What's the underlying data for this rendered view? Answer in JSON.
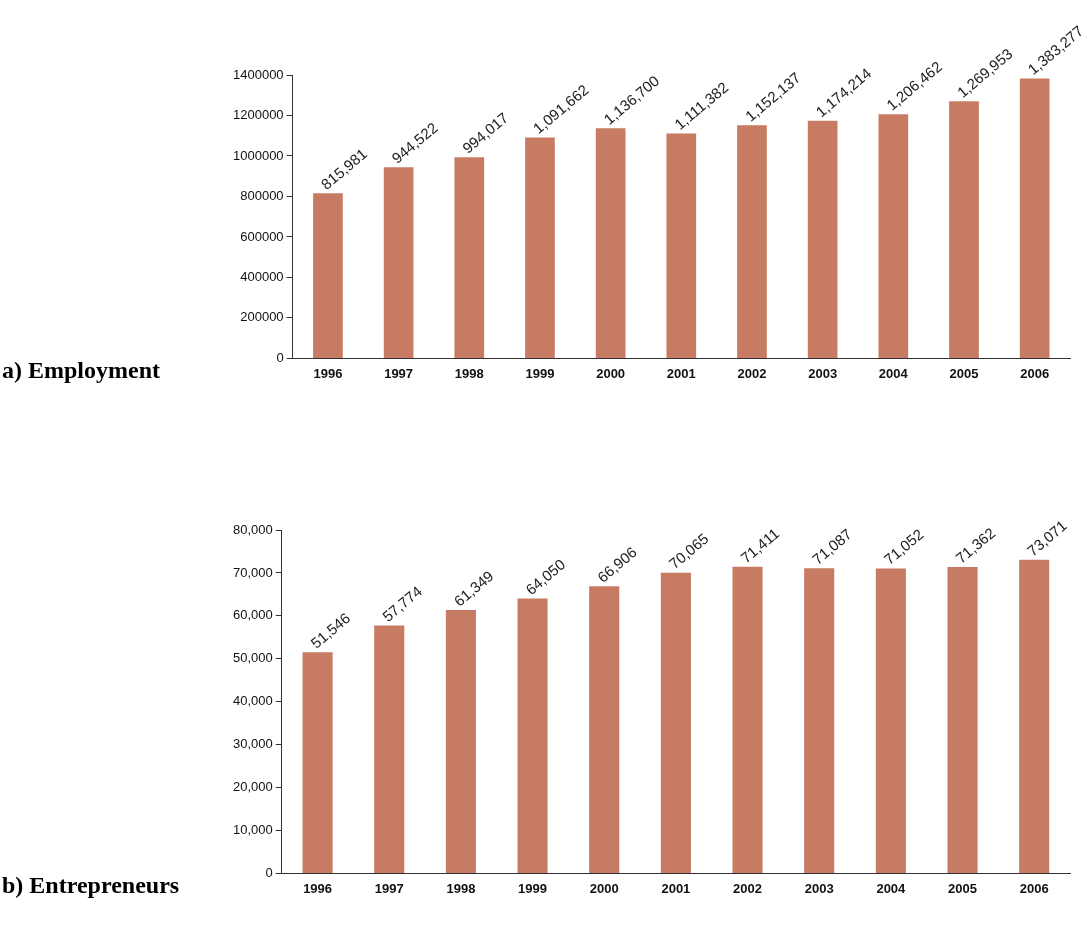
{
  "chart_data": [
    {
      "type": "bar",
      "title": "a) Employment",
      "categories": [
        "1996",
        "1997",
        "1998",
        "1999",
        "2000",
        "2001",
        "2002",
        "2003",
        "2004",
        "2005",
        "2006"
      ],
      "values": [
        815981,
        944522,
        994017,
        1091662,
        1136700,
        1111382,
        1152137,
        1174214,
        1206462,
        1269953,
        1383277
      ],
      "color": "#c87b63",
      "value_labels": [
        "815,981",
        "944,522",
        "994,017",
        "1,091,662",
        "1,136,700",
        "1,111,382",
        "1,152,137",
        "1,174,214",
        "1,206,462",
        "1,269,953",
        "1,383,277"
      ],
      "ylim": [
        0,
        1400000
      ],
      "yticks": [
        0,
        200000,
        400000,
        600000,
        800000,
        1000000,
        1200000,
        1400000
      ],
      "grid": false
    },
    {
      "type": "bar",
      "title": "b) Entrepreneurs",
      "categories": [
        "1996",
        "1997",
        "1998",
        "1999",
        "2000",
        "2001",
        "2002",
        "2003",
        "2004",
        "2005",
        "2006"
      ],
      "values": [
        51546,
        57774,
        61349,
        64050,
        66906,
        70065,
        71411,
        71087,
        71052,
        71362,
        73071
      ],
      "color": "#c87b63",
      "value_labels": [
        "51,546",
        "57,774",
        "61,349",
        "64,050",
        "66,906",
        "70,065",
        "71,411",
        "71,087",
        "71,052",
        "71,362",
        "73,071"
      ],
      "ylim": [
        0,
        80000
      ],
      "yticks": [
        {
          "value": 0,
          "label": "0"
        },
        {
          "value": 10000,
          "label": "10,000"
        },
        {
          "value": 20000,
          "label": "20,000"
        },
        {
          "value": 30000,
          "label": "30,000"
        },
        {
          "value": 40000,
          "label": "40,000"
        },
        {
          "value": 50000,
          "label": "50,000"
        },
        {
          "value": 60000,
          "label": "60,000"
        },
        {
          "value": 70000,
          "label": "70,000"
        },
        {
          "value": 80000,
          "label": "80,000"
        }
      ],
      "grid": false
    }
  ]
}
